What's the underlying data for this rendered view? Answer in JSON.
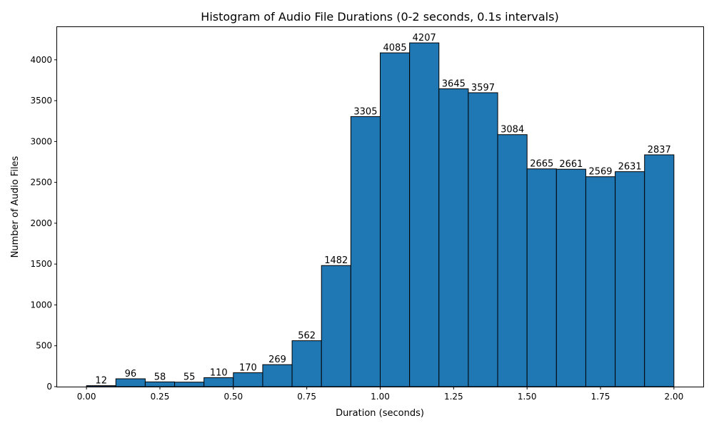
{
  "chart_data": {
    "type": "bar",
    "title": "Histogram of Audio File Durations (0-2 seconds, 0.1s intervals)",
    "xlabel": "Duration (seconds)",
    "ylabel": "Number of Audio Files",
    "bin_edges": [
      0.0,
      0.1,
      0.2,
      0.3,
      0.4,
      0.5,
      0.6,
      0.7,
      0.8,
      0.9,
      1.0,
      1.1,
      1.2,
      1.3,
      1.4,
      1.5,
      1.6,
      1.7,
      1.8,
      1.9,
      2.0
    ],
    "values": [
      12,
      96,
      58,
      55,
      110,
      170,
      269,
      562,
      1482,
      3305,
      4085,
      4207,
      3645,
      3597,
      3084,
      2665,
      2661,
      2569,
      2631,
      2837
    ],
    "xlim": [
      -0.1,
      2.1
    ],
    "ylim": [
      0,
      4400
    ],
    "xticks": [
      0.0,
      0.25,
      0.5,
      0.75,
      1.0,
      1.25,
      1.5,
      1.75,
      2.0
    ],
    "xtick_labels": [
      "0.00",
      "0.25",
      "0.50",
      "0.75",
      "1.00",
      "1.25",
      "1.50",
      "1.75",
      "2.00"
    ],
    "yticks": [
      0,
      500,
      1000,
      1500,
      2000,
      2500,
      3000,
      3500,
      4000
    ],
    "ytick_labels": [
      "0",
      "500",
      "1000",
      "1500",
      "2000",
      "2500",
      "3000",
      "3500",
      "4000"
    ],
    "grid": false,
    "bar_color": "#1f77b4",
    "edge_color": "#000000"
  }
}
